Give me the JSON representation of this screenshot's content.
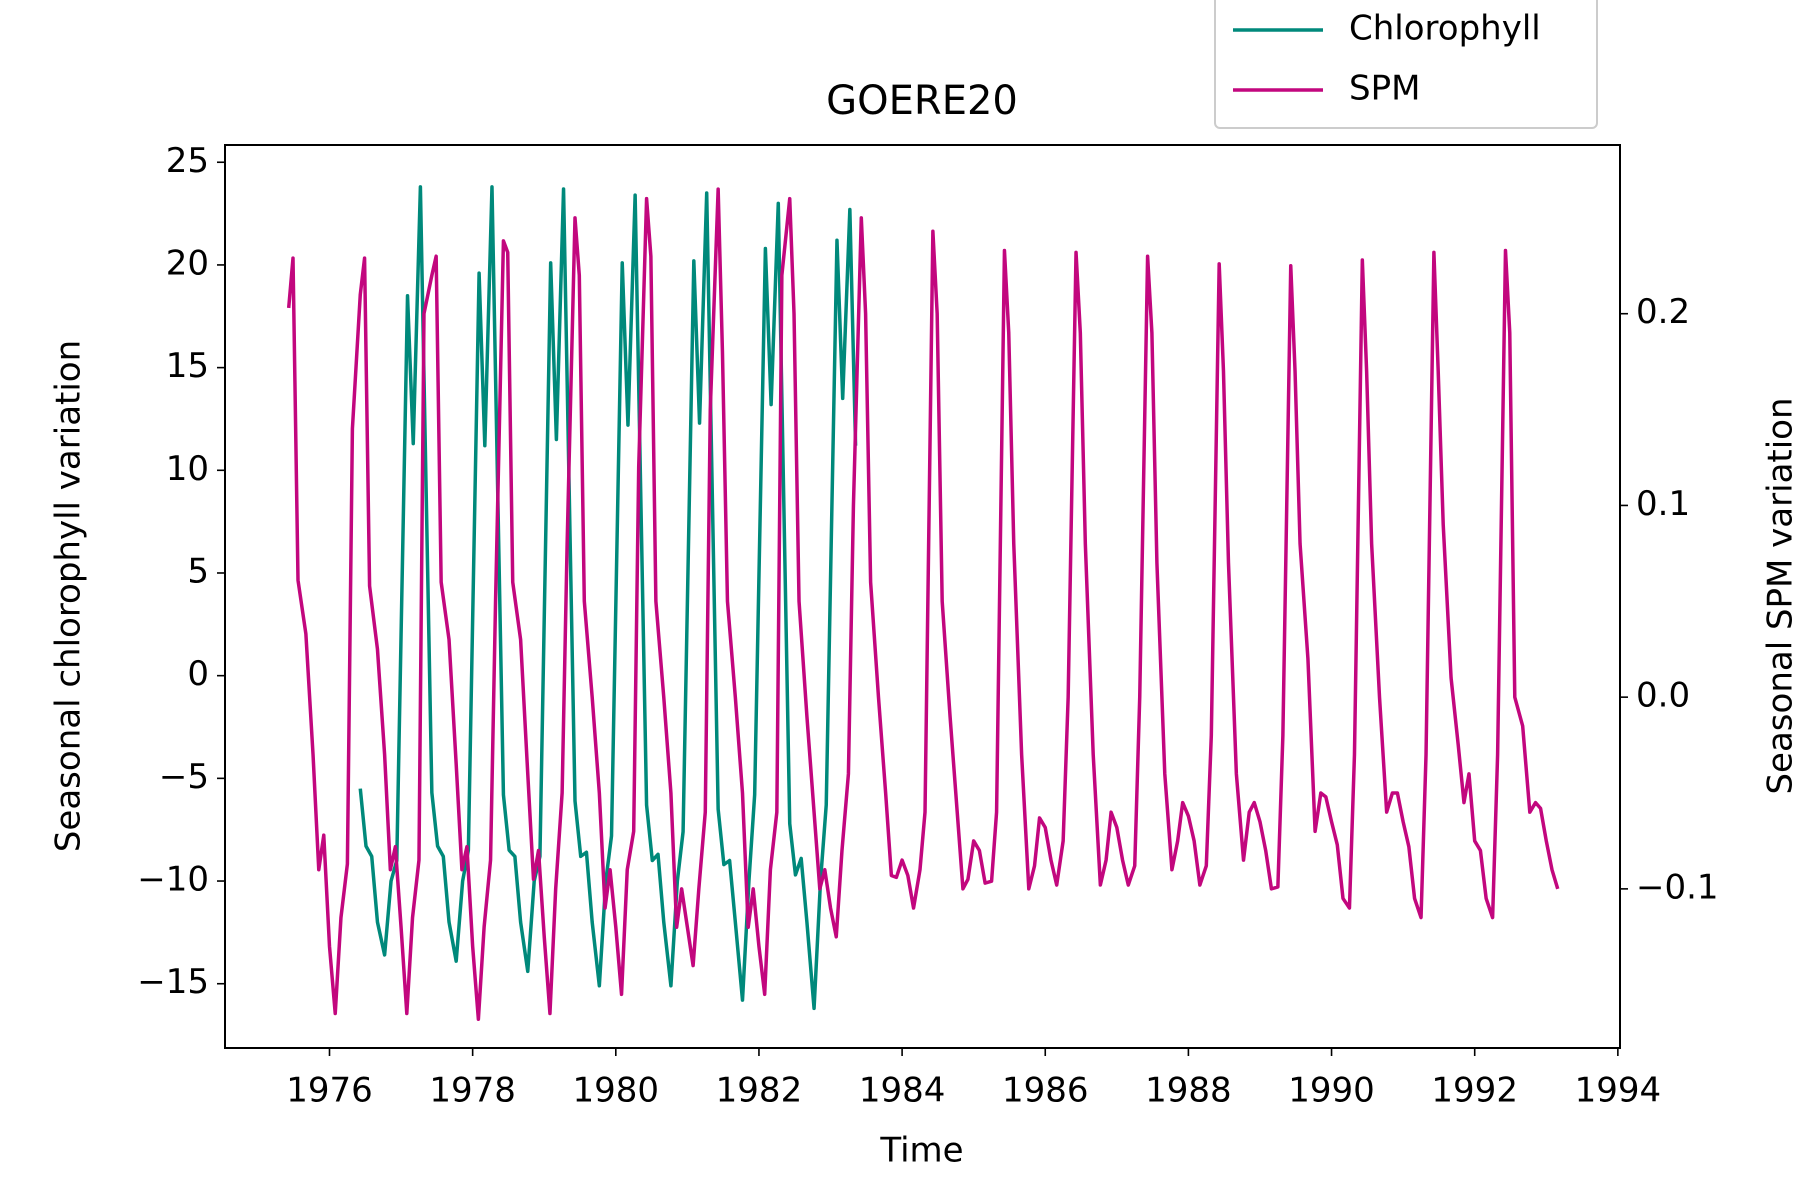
{
  "chart_data": {
    "type": "line",
    "title": "GOERE20",
    "x_label": "Time",
    "y_label": "Seasonal chlorophyll variation",
    "y2_label": "Seasonal SPM variation",
    "xlim": [
      1974.54,
      1994.03
    ],
    "xticks": [
      1976,
      1978,
      1980,
      1982,
      1984,
      1986,
      1988,
      1990,
      1992,
      1994
    ],
    "ylim": [
      -18.13,
      25.84
    ],
    "yticks": [
      {
        "value": -15,
        "label": "−15"
      },
      {
        "value": -10,
        "label": "−10"
      },
      {
        "value": -5,
        "label": "−5"
      },
      0,
      5,
      10,
      15,
      20,
      25
    ],
    "y2lim": [
      -0.183,
      0.288
    ],
    "y2ticks": [
      {
        "value": -0.1,
        "label": "−0.1"
      },
      {
        "value": 0,
        "label": "0.0"
      },
      0.1,
      0.2
    ],
    "grid": false,
    "legend": "upper right",
    "series": [
      {
        "name": "Chlorophyll",
        "color": "#00897b",
        "axis": "y",
        "x": [
          1976.43,
          1976.51,
          1976.59,
          1976.67,
          1976.77,
          1976.86,
          1976.94,
          1977.09,
          1977.17,
          1977.27,
          1977.43,
          1977.51,
          1977.59,
          1977.67,
          1977.77,
          1977.86,
          1977.94,
          1978.09,
          1978.17,
          1978.27,
          1978.43,
          1978.51,
          1978.59,
          1978.67,
          1978.77,
          1978.86,
          1978.94,
          1979.09,
          1979.17,
          1979.27,
          1979.43,
          1979.51,
          1979.59,
          1979.67,
          1979.77,
          1979.86,
          1979.94,
          1980.09,
          1980.17,
          1980.27,
          1980.43,
          1980.51,
          1980.59,
          1980.67,
          1980.77,
          1980.86,
          1980.94,
          1981.09,
          1981.17,
          1981.27,
          1981.43,
          1981.51,
          1981.59,
          1981.67,
          1981.77,
          1981.86,
          1981.94,
          1982.09,
          1982.17,
          1982.27,
          1982.43,
          1982.51,
          1982.59,
          1982.67,
          1982.77,
          1982.86,
          1982.94,
          1983.09,
          1983.17,
          1983.27,
          1983.35
        ],
        "values": [
          -5.5,
          -8.3,
          -8.8,
          -12,
          -13.6,
          -10,
          -9,
          18.5,
          11.3,
          23.8,
          -5.7,
          -8.3,
          -8.8,
          -12,
          -13.9,
          -10,
          -8.5,
          19.6,
          11.2,
          23.8,
          -5.8,
          -8.5,
          -8.8,
          -12,
          -14.4,
          -10,
          -8.8,
          20.1,
          11.5,
          23.7,
          -6.1,
          -8.8,
          -8.6,
          -12,
          -15.1,
          -10,
          -7.8,
          20.1,
          12.2,
          23.4,
          -6.3,
          -9,
          -8.7,
          -12,
          -15.1,
          -10,
          -7.6,
          20.2,
          12.3,
          23.5,
          -6.5,
          -9.2,
          -9,
          -12,
          -15.8,
          -10,
          -5.8,
          20.8,
          13.2,
          23,
          -7.2,
          -9.7,
          -8.9,
          -12,
          -16.2,
          -10,
          -6.3,
          21.2,
          13.5,
          22.7,
          11.2
        ]
      },
      {
        "name": "SPM",
        "color": "#c2077e",
        "axis": "y2",
        "x": [
          1975.43,
          1975.49,
          1975.56,
          1975.67,
          1975.77,
          1975.85,
          1975.92,
          1976.0,
          1976.08,
          1976.16,
          1976.25,
          1976.32,
          1976.43,
          1976.49,
          1976.56,
          1976.67,
          1976.77,
          1976.85,
          1976.92,
          1977.0,
          1977.08,
          1977.16,
          1977.25,
          1977.32,
          1977.43,
          1977.49,
          1977.56,
          1977.67,
          1977.77,
          1977.85,
          1977.92,
          1978.0,
          1978.08,
          1978.16,
          1978.25,
          1978.32,
          1978.43,
          1978.49,
          1978.56,
          1978.67,
          1978.77,
          1978.85,
          1978.92,
          1979.0,
          1979.08,
          1979.16,
          1979.25,
          1979.32,
          1979.43,
          1979.49,
          1979.56,
          1979.67,
          1979.77,
          1979.85,
          1979.92,
          1980.0,
          1980.08,
          1980.16,
          1980.25,
          1980.32,
          1980.43,
          1980.49,
          1980.56,
          1980.67,
          1980.77,
          1980.85,
          1980.92,
          1981.0,
          1981.08,
          1981.16,
          1981.25,
          1981.32,
          1981.43,
          1981.49,
          1981.56,
          1981.67,
          1981.77,
          1981.85,
          1981.92,
          1982.0,
          1982.08,
          1982.16,
          1982.25,
          1982.32,
          1982.43,
          1982.49,
          1982.56,
          1982.67,
          1982.77,
          1982.85,
          1982.92,
          1983.0,
          1983.08,
          1983.16,
          1983.25,
          1983.32,
          1983.43,
          1983.49,
          1983.56,
          1983.67,
          1983.77,
          1983.85,
          1983.92,
          1984.0,
          1984.08,
          1984.16,
          1984.25,
          1984.32,
          1984.43,
          1984.49,
          1984.56,
          1984.67,
          1984.77,
          1984.85,
          1984.92,
          1985.0,
          1985.08,
          1985.16,
          1985.25,
          1985.32,
          1985.43,
          1985.49,
          1985.56,
          1985.67,
          1985.77,
          1985.85,
          1985.92,
          1986.0,
          1986.08,
          1986.16,
          1986.25,
          1986.32,
          1986.43,
          1986.49,
          1986.56,
          1986.67,
          1986.77,
          1986.85,
          1986.92,
          1987.0,
          1987.08,
          1987.16,
          1987.25,
          1987.32,
          1987.43,
          1987.49,
          1987.56,
          1987.67,
          1987.77,
          1987.85,
          1987.92,
          1988.0,
          1988.08,
          1988.16,
          1988.25,
          1988.32,
          1988.43,
          1988.49,
          1988.56,
          1988.67,
          1988.77,
          1988.85,
          1988.92,
          1989.0,
          1989.08,
          1989.16,
          1989.25,
          1989.32,
          1989.43,
          1989.49,
          1989.56,
          1989.67,
          1989.77,
          1989.85,
          1989.92,
          1990.0,
          1990.08,
          1990.16,
          1990.25,
          1990.32,
          1990.43,
          1990.49,
          1990.56,
          1990.67,
          1990.77,
          1990.85,
          1990.92,
          1991.0,
          1991.08,
          1991.16,
          1991.25,
          1991.32,
          1991.43,
          1991.49,
          1991.56,
          1991.67,
          1991.77,
          1991.85,
          1991.92,
          1992.0,
          1992.08,
          1992.16,
          1992.25,
          1992.32,
          1992.43,
          1992.49,
          1992.56,
          1992.67,
          1992.77,
          1992.85,
          1992.92,
          1993.0,
          1993.08,
          1993.16
        ],
        "values": [
          0.203,
          0.229,
          0.061,
          0.033,
          -0.03,
          -0.09,
          -0.072,
          -0.13,
          -0.165,
          -0.115,
          -0.087,
          0.14,
          0.21,
          0.229,
          0.058,
          0.025,
          -0.03,
          -0.09,
          -0.078,
          -0.12,
          -0.165,
          -0.115,
          -0.085,
          0.2,
          0.22,
          0.23,
          0.06,
          0.03,
          -0.035,
          -0.09,
          -0.078,
          -0.13,
          -0.168,
          -0.12,
          -0.085,
          0.05,
          0.238,
          0.232,
          0.06,
          0.03,
          -0.04,
          -0.095,
          -0.08,
          -0.125,
          -0.165,
          -0.1,
          -0.05,
          0.08,
          0.25,
          0.22,
          0.05,
          0.0,
          -0.05,
          -0.11,
          -0.09,
          -0.12,
          -0.155,
          -0.09,
          -0.07,
          0.12,
          0.26,
          0.23,
          0.05,
          0.0,
          -0.05,
          -0.12,
          -0.1,
          -0.12,
          -0.14,
          -0.1,
          -0.06,
          0.15,
          0.265,
          0.18,
          0.05,
          0.0,
          -0.05,
          -0.12,
          -0.1,
          -0.13,
          -0.155,
          -0.09,
          -0.06,
          0.22,
          0.26,
          0.2,
          0.05,
          -0.01,
          -0.06,
          -0.1,
          -0.09,
          -0.11,
          -0.125,
          -0.08,
          -0.04,
          0.1,
          0.25,
          0.2,
          0.06,
          0.0,
          -0.05,
          -0.093,
          -0.094,
          -0.085,
          -0.093,
          -0.11,
          -0.09,
          -0.06,
          0.243,
          0.2,
          0.05,
          -0.01,
          -0.06,
          -0.1,
          -0.095,
          -0.075,
          -0.08,
          -0.097,
          -0.096,
          -0.06,
          0.233,
          0.19,
          0.08,
          -0.03,
          -0.1,
          -0.088,
          -0.063,
          -0.068,
          -0.085,
          -0.098,
          -0.075,
          0.0,
          0.232,
          0.19,
          0.08,
          -0.03,
          -0.098,
          -0.085,
          -0.06,
          -0.068,
          -0.085,
          -0.098,
          -0.088,
          0.0,
          0.23,
          0.19,
          0.07,
          -0.04,
          -0.09,
          -0.075,
          -0.055,
          -0.062,
          -0.075,
          -0.098,
          -0.088,
          -0.02,
          0.226,
          0.17,
          0.07,
          -0.04,
          -0.085,
          -0.06,
          -0.055,
          -0.065,
          -0.08,
          -0.1,
          -0.099,
          -0.02,
          0.225,
          0.17,
          0.08,
          0.02,
          -0.07,
          -0.05,
          -0.052,
          -0.065,
          -0.077,
          -0.105,
          -0.11,
          -0.03,
          0.228,
          0.17,
          0.08,
          0.0,
          -0.06,
          -0.05,
          -0.05,
          -0.065,
          -0.078,
          -0.105,
          -0.115,
          -0.03,
          0.232,
          0.17,
          0.09,
          0.01,
          -0.025,
          -0.055,
          -0.04,
          -0.075,
          -0.08,
          -0.105,
          -0.115,
          -0.03,
          0.233,
          0.19,
          0.0,
          -0.015,
          -0.06,
          -0.055,
          -0.058,
          -0.075,
          -0.09,
          -0.1
        ]
      }
    ]
  }
}
